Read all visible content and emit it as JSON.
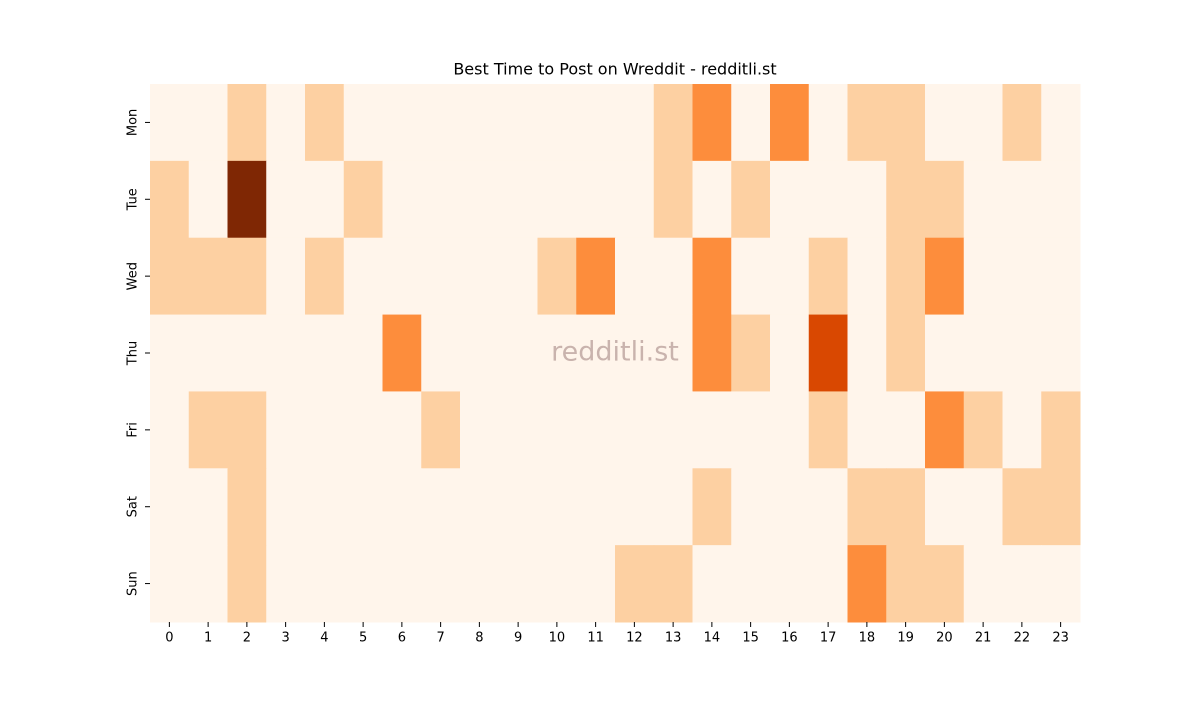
{
  "chart_data": {
    "type": "heatmap",
    "title": "Best Time to Post on Wreddit - redditli.st",
    "watermark": "redditli.st",
    "x_categories": [
      0,
      1,
      2,
      3,
      4,
      5,
      6,
      7,
      8,
      9,
      10,
      11,
      12,
      13,
      14,
      15,
      16,
      17,
      18,
      19,
      20,
      21,
      22,
      23
    ],
    "y_categories": [
      "Mon",
      "Tue",
      "Wed",
      "Thu",
      "Fri",
      "Sat",
      "Sun"
    ],
    "z": [
      [
        0,
        0,
        1,
        0,
        1,
        0,
        0,
        0,
        0,
        0,
        0,
        0,
        0,
        1,
        2,
        0,
        2,
        0,
        1,
        1,
        0,
        0,
        1,
        0
      ],
      [
        1,
        0,
        4,
        0,
        0,
        1,
        0,
        0,
        0,
        0,
        0,
        0,
        0,
        1,
        0,
        1,
        0,
        0,
        0,
        1,
        1,
        0,
        0,
        0
      ],
      [
        1,
        1,
        1,
        0,
        1,
        0,
        0,
        0,
        0,
        0,
        1,
        2,
        0,
        0,
        2,
        0,
        0,
        1,
        0,
        1,
        2,
        0,
        0,
        0
      ],
      [
        0,
        0,
        0,
        0,
        0,
        0,
        2,
        0,
        0,
        0,
        0,
        0,
        0,
        0,
        2,
        1,
        0,
        3,
        0,
        1,
        0,
        0,
        0,
        0
      ],
      [
        0,
        1,
        1,
        0,
        0,
        0,
        0,
        1,
        0,
        0,
        0,
        0,
        0,
        0,
        0,
        0,
        0,
        1,
        0,
        0,
        2,
        1,
        0,
        1
      ],
      [
        0,
        0,
        1,
        0,
        0,
        0,
        0,
        0,
        0,
        0,
        0,
        0,
        0,
        0,
        1,
        0,
        0,
        0,
        1,
        1,
        0,
        0,
        1,
        1
      ],
      [
        0,
        0,
        1,
        0,
        0,
        0,
        0,
        0,
        0,
        0,
        0,
        0,
        1,
        1,
        0,
        0,
        0,
        0,
        2,
        1,
        1,
        0,
        0,
        0
      ]
    ],
    "zlim": [
      0,
      4
    ],
    "colormap": [
      "#fff5eb",
      "#fdd0a2",
      "#fd8d3c",
      "#d94801",
      "#7f2704"
    ]
  }
}
